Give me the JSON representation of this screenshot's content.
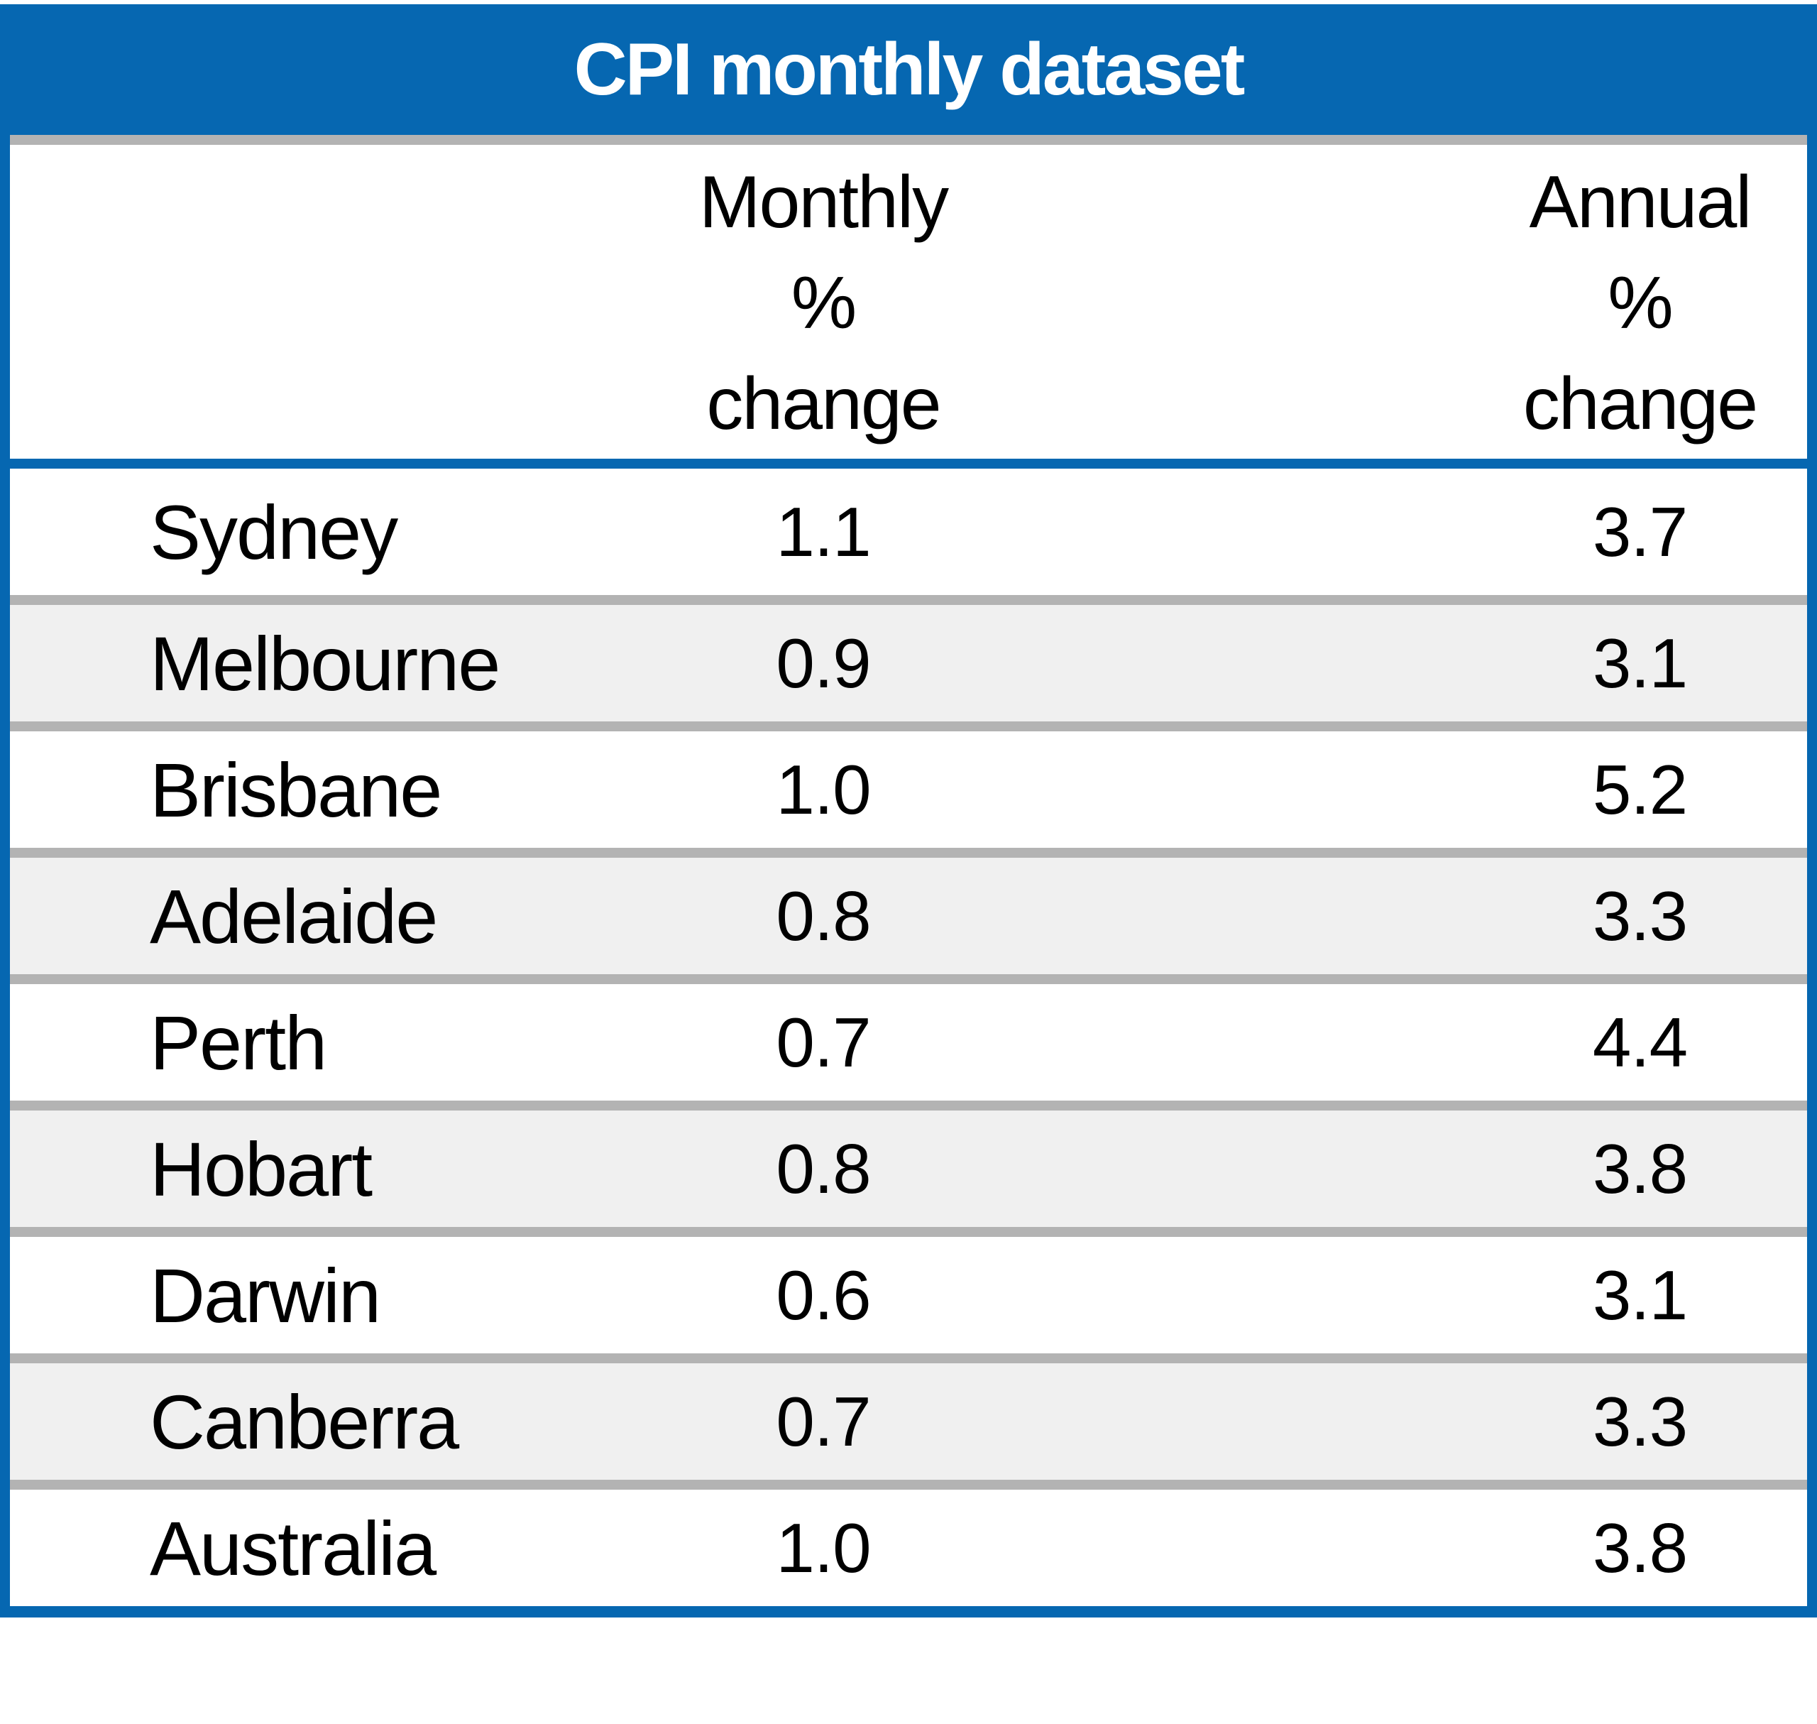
{
  "title": "CPI monthly dataset",
  "table": {
    "headers": {
      "monthly": "Monthly\n%\nchange",
      "annual": "Annual\n%\nchange"
    },
    "rows": [
      {
        "city": "Sydney",
        "monthly": "1.1",
        "annual": "3.7"
      },
      {
        "city": "Melbourne",
        "monthly": "0.9",
        "annual": "3.1"
      },
      {
        "city": "Brisbane",
        "monthly": "1.0",
        "annual": "5.2"
      },
      {
        "city": "Adelaide",
        "monthly": "0.8",
        "annual": "3.3"
      },
      {
        "city": "Perth",
        "monthly": "0.7",
        "annual": "4.4"
      },
      {
        "city": "Hobart",
        "monthly": "0.8",
        "annual": "3.8"
      },
      {
        "city": "Darwin",
        "monthly": "0.6",
        "annual": "3.1"
      },
      {
        "city": "Canberra",
        "monthly": "0.7",
        "annual": "3.3"
      },
      {
        "city": "Australia",
        "monthly": "1.0",
        "annual": "3.8"
      }
    ]
  },
  "colors": {
    "header_bg": "#0667b1",
    "separator": "#b3b3b3",
    "stripe": "#f0f0f0",
    "title_text": "#ffffff",
    "body_text": "#000000"
  },
  "chart_data": {
    "type": "table",
    "title": "CPI monthly dataset",
    "columns": [
      "",
      "Monthly % change",
      "Annual % change"
    ],
    "rows": [
      [
        "Sydney",
        1.1,
        3.7
      ],
      [
        "Melbourne",
        0.9,
        3.1
      ],
      [
        "Brisbane",
        1.0,
        5.2
      ],
      [
        "Adelaide",
        0.8,
        3.3
      ],
      [
        "Perth",
        0.7,
        4.4
      ],
      [
        "Hobart",
        0.8,
        3.8
      ],
      [
        "Darwin",
        0.6,
        3.1
      ],
      [
        "Canberra",
        0.7,
        3.3
      ],
      [
        "Australia",
        1.0,
        3.8
      ]
    ]
  }
}
